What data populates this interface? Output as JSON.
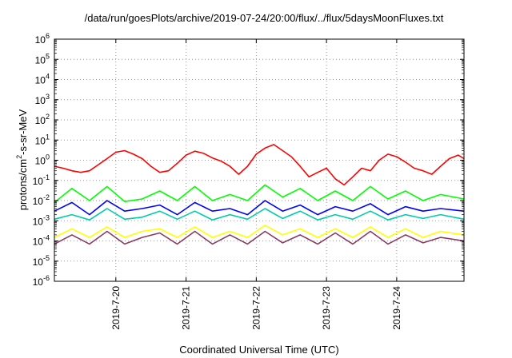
{
  "chart_data": {
    "type": "line",
    "title": "/data/run/goesPlots/archive/2019-07-24/20:00/flux/../flux/5daysMoonFluxes.txt",
    "xlabel": "Coordinated Universal Time (UTC)",
    "ylabel": "protons/cm2-s-sr-MeV",
    "ylabel_base": "protons/cm",
    "ylabel_sup": "2",
    "ylabel_rest": "-s-sr-MeV",
    "yscale": "log",
    "ylim": [
      1e-06,
      1000000.0
    ],
    "xlim": [
      "2019-07-19T03:00",
      "2019-07-24T23:00"
    ],
    "grid": true,
    "y_ticks": [
      {
        "base": "10",
        "exp": "-6"
      },
      {
        "base": "10",
        "exp": "-5"
      },
      {
        "base": "10",
        "exp": "-4"
      },
      {
        "base": "10",
        "exp": "-3"
      },
      {
        "base": "10",
        "exp": "-2"
      },
      {
        "base": "10",
        "exp": "-1"
      },
      {
        "base": "10",
        "exp": "0"
      },
      {
        "base": "10",
        "exp": "1"
      },
      {
        "base": "10",
        "exp": "2"
      },
      {
        "base": "10",
        "exp": "3"
      },
      {
        "base": "10",
        "exp": "4"
      },
      {
        "base": "10",
        "exp": "5"
      },
      {
        "base": "10",
        "exp": "6"
      }
    ],
    "x_ticks": [
      "2019-7-20",
      "2019-7-21",
      "2019-7-22",
      "2019-7-23",
      "2019-7-24"
    ],
    "x_tick_dates": [
      "2019-07-20",
      "2019-07-21",
      "2019-07-22",
      "2019-07-23",
      "2019-07-24"
    ],
    "series": [
      {
        "color": "#ff0000",
        "x": [
          "2019-07-19T03:00",
          "2019-07-19T06:00",
          "2019-07-19T09:00",
          "2019-07-19T12:00",
          "2019-07-19T15:00",
          "2019-07-19T18:00",
          "2019-07-19T21:00",
          "2019-07-20T00:00",
          "2019-07-20T03:00",
          "2019-07-20T06:00",
          "2019-07-20T09:00",
          "2019-07-20T12:00",
          "2019-07-20T15:00",
          "2019-07-20T18:00",
          "2019-07-20T21:00",
          "2019-07-21T00:00",
          "2019-07-21T03:00",
          "2019-07-21T06:00",
          "2019-07-21T09:00",
          "2019-07-21T12:00",
          "2019-07-21T15:00",
          "2019-07-21T18:00",
          "2019-07-21T21:00",
          "2019-07-22T00:00",
          "2019-07-22T03:00",
          "2019-07-22T06:00",
          "2019-07-22T09:00",
          "2019-07-22T12:00",
          "2019-07-22T15:00",
          "2019-07-22T18:00",
          "2019-07-22T21:00",
          "2019-07-23T00:00",
          "2019-07-23T03:00",
          "2019-07-23T06:00",
          "2019-07-23T09:00",
          "2019-07-23T12:00",
          "2019-07-23T15:00",
          "2019-07-23T18:00",
          "2019-07-23T21:00",
          "2019-07-24T00:00",
          "2019-07-24T03:00",
          "2019-07-24T06:00",
          "2019-07-24T09:00",
          "2019-07-24T12:00",
          "2019-07-24T15:00",
          "2019-07-24T18:00",
          "2019-07-24T21:00",
          "2019-07-24T23:00"
        ],
        "values": [
          0.5,
          0.4,
          0.3,
          0.25,
          0.3,
          0.6,
          1.2,
          2.5,
          3,
          2,
          1.2,
          0.5,
          0.25,
          0.3,
          0.7,
          1.8,
          2.8,
          2.2,
          1.3,
          0.9,
          0.5,
          0.2,
          0.5,
          2,
          4,
          6,
          3,
          1.5,
          0.5,
          0.15,
          0.25,
          0.4,
          0.12,
          0.06,
          0.15,
          0.4,
          0.3,
          1,
          2,
          1.5,
          0.8,
          0.4,
          0.3,
          0.2,
          0.5,
          1.2,
          1.8,
          1.2
        ]
      },
      {
        "color": "#00ff00",
        "x": [
          "2019-07-19T03:00",
          "2019-07-19T09:00",
          "2019-07-19T15:00",
          "2019-07-19T21:00",
          "2019-07-20T03:00",
          "2019-07-20T09:00",
          "2019-07-20T15:00",
          "2019-07-20T21:00",
          "2019-07-21T03:00",
          "2019-07-21T09:00",
          "2019-07-21T15:00",
          "2019-07-21T21:00",
          "2019-07-22T03:00",
          "2019-07-22T09:00",
          "2019-07-22T15:00",
          "2019-07-22T21:00",
          "2019-07-23T03:00",
          "2019-07-23T09:00",
          "2019-07-23T15:00",
          "2019-07-23T21:00",
          "2019-07-24T03:00",
          "2019-07-24T09:00",
          "2019-07-24T15:00",
          "2019-07-24T23:00"
        ],
        "values": [
          0.008,
          0.04,
          0.01,
          0.05,
          0.009,
          0.012,
          0.03,
          0.01,
          0.05,
          0.01,
          0.02,
          0.01,
          0.06,
          0.015,
          0.04,
          0.01,
          0.03,
          0.01,
          0.05,
          0.012,
          0.03,
          0.01,
          0.02,
          0.012
        ]
      },
      {
        "color": "#00ccaa",
        "x": [
          "2019-07-19T03:00",
          "2019-07-19T09:00",
          "2019-07-19T15:00",
          "2019-07-19T21:00",
          "2019-07-20T03:00",
          "2019-07-20T09:00",
          "2019-07-20T15:00",
          "2019-07-20T21:00",
          "2019-07-21T03:00",
          "2019-07-21T09:00",
          "2019-07-21T15:00",
          "2019-07-21T21:00",
          "2019-07-22T03:00",
          "2019-07-22T09:00",
          "2019-07-22T15:00",
          "2019-07-22T21:00",
          "2019-07-23T03:00",
          "2019-07-23T09:00",
          "2019-07-23T15:00",
          "2019-07-23T21:00",
          "2019-07-24T03:00",
          "2019-07-24T09:00",
          "2019-07-24T15:00",
          "2019-07-24T23:00"
        ],
        "values": [
          0.0012,
          0.002,
          0.0011,
          0.004,
          0.0012,
          0.0015,
          0.003,
          0.0012,
          0.003,
          0.0011,
          0.002,
          0.0012,
          0.004,
          0.0013,
          0.003,
          0.0011,
          0.002,
          0.0012,
          0.003,
          0.0011,
          0.002,
          0.0013,
          0.002,
          0.0012
        ]
      },
      {
        "color": "#0000ff",
        "x": [
          "2019-07-19T03:00",
          "2019-07-19T09:00",
          "2019-07-19T15:00",
          "2019-07-19T21:00",
          "2019-07-20T03:00",
          "2019-07-20T09:00",
          "2019-07-20T15:00",
          "2019-07-20T21:00",
          "2019-07-21T03:00",
          "2019-07-21T09:00",
          "2019-07-21T15:00",
          "2019-07-21T21:00",
          "2019-07-22T03:00",
          "2019-07-22T09:00",
          "2019-07-22T15:00",
          "2019-07-22T21:00",
          "2019-07-23T03:00",
          "2019-07-23T09:00",
          "2019-07-23T15:00",
          "2019-07-23T21:00",
          "2019-07-24T03:00",
          "2019-07-24T09:00",
          "2019-07-24T15:00",
          "2019-07-24T23:00"
        ],
        "values": [
          0.003,
          0.008,
          0.002,
          0.01,
          0.003,
          0.004,
          0.006,
          0.002,
          0.008,
          0.003,
          0.004,
          0.002,
          0.01,
          0.003,
          0.006,
          0.002,
          0.005,
          0.003,
          0.007,
          0.002,
          0.005,
          0.003,
          0.004,
          0.003
        ]
      },
      {
        "color": "#ffff00",
        "x": [
          "2019-07-19T03:00",
          "2019-07-19T09:00",
          "2019-07-19T15:00",
          "2019-07-19T21:00",
          "2019-07-20T03:00",
          "2019-07-20T09:00",
          "2019-07-20T15:00",
          "2019-07-20T21:00",
          "2019-07-21T03:00",
          "2019-07-21T09:00",
          "2019-07-21T15:00",
          "2019-07-21T21:00",
          "2019-07-22T03:00",
          "2019-07-22T09:00",
          "2019-07-22T15:00",
          "2019-07-22T21:00",
          "2019-07-23T03:00",
          "2019-07-23T09:00",
          "2019-07-23T15:00",
          "2019-07-23T21:00",
          "2019-07-24T03:00",
          "2019-07-24T09:00",
          "2019-07-24T15:00",
          "2019-07-24T23:00"
        ],
        "values": [
          0.00015,
          0.0004,
          0.00015,
          0.0005,
          0.00015,
          0.0003,
          0.0004,
          0.00015,
          0.0005,
          0.00015,
          0.0003,
          0.00015,
          0.0006,
          0.0002,
          0.0004,
          0.00015,
          0.0004,
          0.00015,
          0.0005,
          0.00015,
          0.0004,
          0.00015,
          0.0003,
          0.0002
        ]
      },
      {
        "color": "#8b3a62",
        "x": [
          "2019-07-19T03:00",
          "2019-07-19T09:00",
          "2019-07-19T15:00",
          "2019-07-19T21:00",
          "2019-07-20T03:00",
          "2019-07-20T09:00",
          "2019-07-20T15:00",
          "2019-07-20T21:00",
          "2019-07-21T03:00",
          "2019-07-21T09:00",
          "2019-07-21T15:00",
          "2019-07-21T21:00",
          "2019-07-22T03:00",
          "2019-07-22T09:00",
          "2019-07-22T15:00",
          "2019-07-22T21:00",
          "2019-07-23T03:00",
          "2019-07-23T09:00",
          "2019-07-23T15:00",
          "2019-07-23T21:00",
          "2019-07-24T03:00",
          "2019-07-24T09:00",
          "2019-07-24T15:00",
          "2019-07-24T23:00"
        ],
        "values": [
          7e-05,
          0.0002,
          7e-05,
          0.0003,
          7e-05,
          0.00015,
          0.00025,
          7e-05,
          0.0003,
          7e-05,
          0.0002,
          7e-05,
          0.0003,
          8e-05,
          0.0002,
          7e-05,
          0.00025,
          7e-05,
          0.0003,
          7e-05,
          0.0002,
          8e-05,
          0.00015,
          0.0001
        ]
      }
    ]
  }
}
